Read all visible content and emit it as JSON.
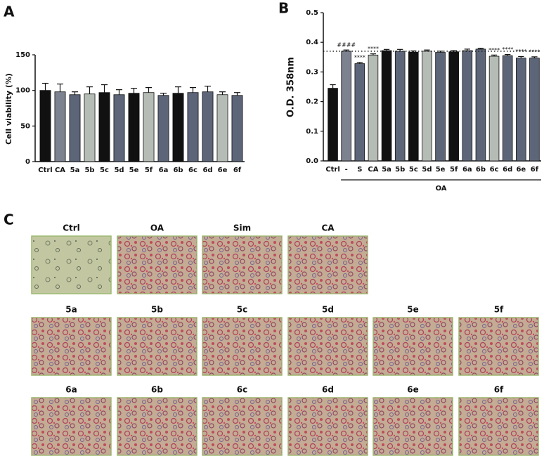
{
  "chart_data": [
    {
      "type": "bar",
      "panel_label": "A",
      "y_label": "Cell viability (%)",
      "categories": [
        "Ctrl",
        "CA",
        "5a",
        "5b",
        "5c",
        "5d",
        "5e",
        "5f",
        "6a",
        "6b",
        "6c",
        "6d",
        "6e",
        "6f"
      ],
      "values": [
        100,
        98,
        94,
        95,
        97,
        94,
        96,
        97,
        93,
        96,
        97,
        98,
        94,
        93
      ],
      "errors": [
        10,
        11,
        4,
        10,
        11,
        7,
        7,
        7,
        3,
        9,
        7,
        8,
        4,
        4
      ],
      "colors": [
        "#111111",
        "#7d8290",
        "#5d6679",
        "#b5bbb5",
        "#111111",
        "#5d6679",
        "#111111",
        "#b5bbb5",
        "#5d6679",
        "#111111",
        "#5d6679",
        "#5d6679",
        "#b5bbb5",
        "#5d6679"
      ],
      "ylim": [
        0,
        150
      ],
      "yticks": [
        0,
        50,
        100,
        150
      ]
    },
    {
      "type": "bar",
      "panel_label": "B",
      "y_label": "O.D. 358nm",
      "categories": [
        "Ctrl",
        "-",
        "S",
        "CA",
        "5a",
        "5b",
        "5c",
        "5d",
        "5e",
        "5f",
        "6a",
        "6b",
        "6c",
        "6d",
        "6e",
        "6f"
      ],
      "values": [
        0.245,
        0.37,
        0.328,
        0.357,
        0.372,
        0.37,
        0.367,
        0.37,
        0.366,
        0.368,
        0.372,
        0.377,
        0.353,
        0.355,
        0.347,
        0.347
      ],
      "errors": [
        0.012,
        0.004,
        0.004,
        0.004,
        0.004,
        0.006,
        0.004,
        0.004,
        0.004,
        0.004,
        0.005,
        0.003,
        0.004,
        0.004,
        0.005,
        0.004
      ],
      "significance": [
        null,
        "####",
        "****",
        "****",
        null,
        null,
        null,
        null,
        null,
        null,
        null,
        null,
        "****",
        "****",
        "****",
        "****"
      ],
      "colors": [
        "#111111",
        "#7d8290",
        "#5d6679",
        "#b5bbb5",
        "#111111",
        "#5d6679",
        "#111111",
        "#b5bbb5",
        "#5d6679",
        "#111111",
        "#5d6679",
        "#5d6679",
        "#b5bbb5",
        "#5d6679",
        "#5d6679",
        "#5d6679"
      ],
      "group_label": "OA",
      "reference_line": 0.37,
      "ylim": [
        0,
        0.5
      ],
      "yticks": [
        {
          "value": 0,
          "label": "0.0"
        },
        {
          "value": 0.1,
          "label": "0.1"
        },
        {
          "value": 0.2,
          "label": "0.2"
        },
        {
          "value": 0.3,
          "label": "0.3"
        },
        {
          "value": 0.4,
          "label": "0.4"
        },
        {
          "value": 0.5,
          "label": "0.5"
        }
      ]
    }
  ],
  "image_panel": {
    "panel_label": "C",
    "rows": [
      [
        "Ctrl",
        "OA",
        "Sim",
        "CA"
      ],
      [
        "5a",
        "5b",
        "5c",
        "5d",
        "5e",
        "5f"
      ],
      [
        "6a",
        "6b",
        "6c",
        "6d",
        "6e",
        "6f"
      ]
    ]
  }
}
